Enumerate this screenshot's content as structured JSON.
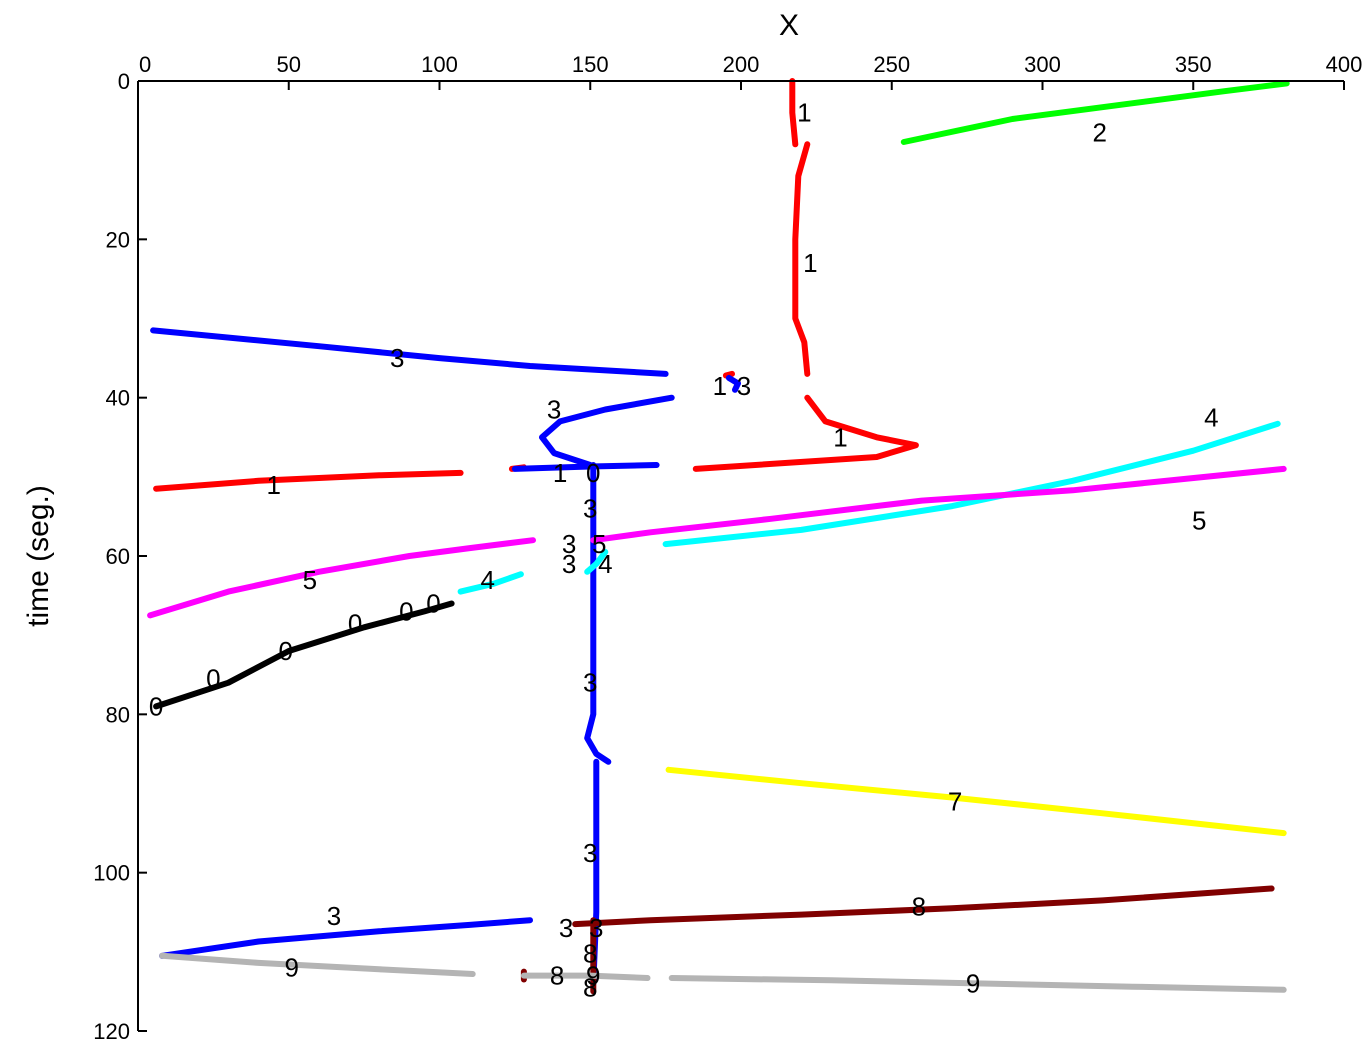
{
  "chart_data": {
    "type": "line",
    "xlabel": "X",
    "ylabel": "time (seg.)",
    "xlim": [
      0,
      400
    ],
    "ylim": [
      0,
      120
    ],
    "y_reversed": true,
    "x_axis_position": "top",
    "grid": false,
    "legend": "none",
    "x_ticks": [
      0,
      50,
      100,
      150,
      200,
      250,
      300,
      350,
      400
    ],
    "y_ticks": [
      0,
      20,
      40,
      60,
      80,
      100,
      120
    ],
    "series": [
      {
        "name": "0",
        "color": "#000000",
        "points": [
          [
            6,
            79
          ],
          [
            30,
            76
          ],
          [
            50,
            72
          ],
          [
            75,
            69
          ],
          [
            95,
            67
          ],
          [
            104,
            66
          ]
        ]
      },
      {
        "name": "1",
        "color": "#ff0000",
        "points": [
          [
            217,
            0
          ],
          [
            217,
            4
          ],
          [
            218,
            8
          ]
        ]
      },
      {
        "name": "1",
        "color": "#ff0000",
        "points": [
          [
            222,
            8
          ],
          [
            219,
            12
          ],
          [
            218,
            20
          ],
          [
            218,
            30
          ],
          [
            221,
            33
          ],
          [
            222,
            37
          ]
        ]
      },
      {
        "name": "1",
        "color": "#ff0000",
        "points": [
          [
            222,
            40
          ],
          [
            228,
            43
          ],
          [
            245,
            45
          ],
          [
            258,
            46
          ],
          [
            245,
            47.5
          ],
          [
            185,
            49
          ]
        ]
      },
      {
        "name": "1",
        "color": "#ff0000",
        "points": [
          [
            6,
            51.5
          ],
          [
            40,
            50.5
          ],
          [
            80,
            49.8
          ],
          [
            107,
            49.5
          ]
        ]
      },
      {
        "name": "1",
        "color": "#ff0000",
        "points": [
          [
            124,
            49
          ],
          [
            128,
            48.8
          ]
        ]
      },
      {
        "name": "1",
        "color": "#ff0000",
        "points": [
          [
            195,
            37.2
          ],
          [
            197,
            37
          ]
        ]
      },
      {
        "name": "2",
        "color": "#00ff00",
        "points": [
          [
            254,
            7.7
          ],
          [
            290,
            4.8
          ],
          [
            330,
            2.8
          ],
          [
            360,
            1.3
          ],
          [
            381,
            0.3
          ]
        ]
      },
      {
        "name": "3",
        "color": "#0000ff",
        "points": [
          [
            5,
            31.5
          ],
          [
            60,
            33.5
          ],
          [
            100,
            35
          ],
          [
            130,
            36
          ],
          [
            175,
            37
          ]
        ]
      },
      {
        "name": "3",
        "color": "#0000ff",
        "points": [
          [
            177,
            40
          ],
          [
            155,
            41.5
          ],
          [
            140,
            43
          ],
          [
            134,
            45
          ],
          [
            138,
            47
          ],
          [
            150,
            48.5
          ]
        ]
      },
      {
        "name": "3",
        "color": "#0000ff",
        "points": [
          [
            125,
            49
          ],
          [
            150,
            48.7
          ],
          [
            172,
            48.5
          ]
        ]
      },
      {
        "name": "3",
        "color": "#0000ff",
        "points": [
          [
            151,
            48.5
          ],
          [
            151,
            60
          ],
          [
            151,
            70
          ],
          [
            151,
            80
          ],
          [
            149,
            83
          ],
          [
            152,
            85
          ],
          [
            156,
            86
          ]
        ]
      },
      {
        "name": "3",
        "color": "#0000ff",
        "points": [
          [
            152,
            86
          ],
          [
            152,
            95
          ],
          [
            152,
            105
          ],
          [
            151,
            114
          ]
        ]
      },
      {
        "name": "3",
        "color": "#0000ff",
        "points": [
          [
            8,
            110.5
          ],
          [
            40,
            108.7
          ],
          [
            80,
            107.4
          ],
          [
            110,
            106.6
          ],
          [
            130,
            106
          ]
        ]
      },
      {
        "name": "3",
        "color": "#0000ff",
        "points": [
          [
            196,
            37.5
          ],
          [
            199,
            38.2
          ],
          [
            198,
            39
          ]
        ]
      },
      {
        "name": "4",
        "color": "#00ffff",
        "points": [
          [
            107,
            64.5
          ],
          [
            118,
            63.5
          ],
          [
            127,
            62.3
          ]
        ]
      },
      {
        "name": "4",
        "color": "#00ffff",
        "points": [
          [
            149,
            62
          ],
          [
            152,
            61
          ],
          [
            155,
            59.5
          ]
        ]
      },
      {
        "name": "4",
        "color": "#00ffff",
        "points": [
          [
            175,
            58.5
          ],
          [
            220,
            56.7
          ],
          [
            270,
            53.7
          ],
          [
            310,
            50.5
          ],
          [
            350,
            46.7
          ],
          [
            378,
            43.3
          ]
        ]
      },
      {
        "name": "5",
        "color": "#ff00ff",
        "points": [
          [
            4,
            67.5
          ],
          [
            30,
            64.5
          ],
          [
            60,
            62
          ],
          [
            90,
            60
          ],
          [
            110,
            59
          ],
          [
            131,
            58
          ]
        ]
      },
      {
        "name": "5",
        "color": "#ff00ff",
        "points": [
          [
            151,
            58
          ],
          [
            170,
            57
          ],
          [
            210,
            55.3
          ],
          [
            260,
            53
          ],
          [
            310,
            51.7
          ],
          [
            380,
            49
          ]
        ]
      },
      {
        "name": "7",
        "color": "#ffff00",
        "points": [
          [
            176,
            87
          ],
          [
            220,
            88.7
          ],
          [
            270,
            90.5
          ],
          [
            320,
            92.5
          ],
          [
            380,
            95
          ]
        ]
      },
      {
        "name": "8",
        "color": "#800000",
        "points": [
          [
            145,
            106.5
          ],
          [
            170,
            106
          ],
          [
            220,
            105.3
          ],
          [
            270,
            104.5
          ],
          [
            320,
            103.5
          ],
          [
            376,
            102
          ]
        ]
      },
      {
        "name": "8",
        "color": "#800000",
        "points": [
          [
            151,
            106
          ],
          [
            151,
            110
          ],
          [
            151,
            115
          ]
        ]
      },
      {
        "name": "8",
        "color": "#800000",
        "points": [
          [
            128,
            112.5
          ],
          [
            128,
            113.5
          ]
        ]
      },
      {
        "name": "9",
        "color": "#b4b4b4",
        "points": [
          [
            8,
            110.5
          ],
          [
            40,
            111.4
          ],
          [
            80,
            112.2
          ],
          [
            111,
            112.8
          ]
        ]
      },
      {
        "name": "9",
        "color": "#b4b4b4",
        "points": [
          [
            128,
            113
          ],
          [
            150,
            113
          ],
          [
            169,
            113.3
          ]
        ]
      },
      {
        "name": "9",
        "color": "#b4b4b4",
        "points": [
          [
            177,
            113.3
          ],
          [
            230,
            113.6
          ],
          [
            280,
            114
          ],
          [
            330,
            114.4
          ],
          [
            380,
            114.8
          ]
        ]
      }
    ],
    "annotations": [
      {
        "text": "1",
        "x": 221,
        "y": 4
      },
      {
        "text": "2",
        "x": 319,
        "y": 6.5
      },
      {
        "text": "1",
        "x": 223,
        "y": 23
      },
      {
        "text": "3",
        "x": 86,
        "y": 35
      },
      {
        "text": "1",
        "x": 193,
        "y": 38.5
      },
      {
        "text": "3",
        "x": 201,
        "y": 38.5
      },
      {
        "text": "3",
        "x": 138,
        "y": 41.5
      },
      {
        "text": "4",
        "x": 356,
        "y": 42.5
      },
      {
        "text": "1",
        "x": 233,
        "y": 45
      },
      {
        "text": "1",
        "x": 45,
        "y": 51
      },
      {
        "text": "1",
        "x": 140,
        "y": 49.5
      },
      {
        "text": "0",
        "x": 151,
        "y": 49.5
      },
      {
        "text": "3",
        "x": 150,
        "y": 54
      },
      {
        "text": "5",
        "x": 352,
        "y": 55.5
      },
      {
        "text": "3",
        "x": 143,
        "y": 58.5
      },
      {
        "text": "5",
        "x": 153,
        "y": 58.5
      },
      {
        "text": "3",
        "x": 143,
        "y": 61
      },
      {
        "text": "4",
        "x": 155,
        "y": 61
      },
      {
        "text": "5",
        "x": 57,
        "y": 63
      },
      {
        "text": "4",
        "x": 116,
        "y": 63
      },
      {
        "text": "0",
        "x": 98,
        "y": 66
      },
      {
        "text": "0",
        "x": 89,
        "y": 67
      },
      {
        "text": "0",
        "x": 72,
        "y": 68.5
      },
      {
        "text": "0",
        "x": 49,
        "y": 72
      },
      {
        "text": "3",
        "x": 150,
        "y": 76
      },
      {
        "text": "0",
        "x": 25,
        "y": 75.5
      },
      {
        "text": "0",
        "x": 6,
        "y": 79
      },
      {
        "text": "7",
        "x": 271,
        "y": 91
      },
      {
        "text": "3",
        "x": 150,
        "y": 97.5
      },
      {
        "text": "8",
        "x": 259,
        "y": 104.3
      },
      {
        "text": "3",
        "x": 65,
        "y": 105.5
      },
      {
        "text": "3",
        "x": 142,
        "y": 107
      },
      {
        "text": "3",
        "x": 152,
        "y": 107
      },
      {
        "text": "8",
        "x": 150,
        "y": 110.2
      },
      {
        "text": "9",
        "x": 51,
        "y": 112
      },
      {
        "text": "8",
        "x": 139,
        "y": 113
      },
      {
        "text": "9",
        "x": 151,
        "y": 113
      },
      {
        "text": "9",
        "x": 277,
        "y": 114
      },
      {
        "text": "8",
        "x": 150,
        "y": 114.5
      }
    ]
  }
}
